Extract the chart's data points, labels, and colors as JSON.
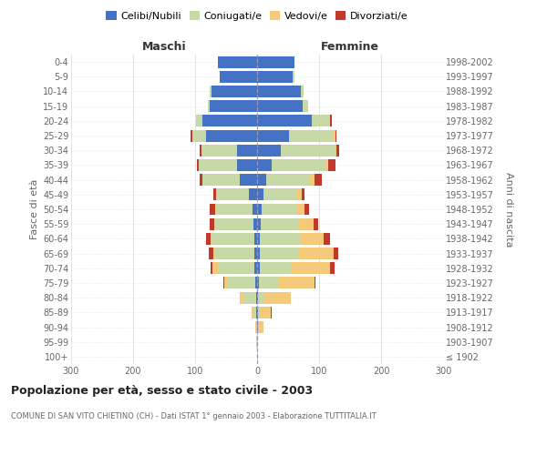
{
  "age_groups": [
    "100+",
    "95-99",
    "90-94",
    "85-89",
    "80-84",
    "75-79",
    "70-74",
    "65-69",
    "60-64",
    "55-59",
    "50-54",
    "45-49",
    "40-44",
    "35-39",
    "30-34",
    "25-29",
    "20-24",
    "15-19",
    "10-14",
    "5-9",
    "0-4"
  ],
  "birth_years": [
    "≤ 1902",
    "1903-1907",
    "1908-1912",
    "1913-1917",
    "1918-1922",
    "1923-1927",
    "1928-1932",
    "1933-1937",
    "1938-1942",
    "1943-1947",
    "1948-1952",
    "1953-1957",
    "1958-1962",
    "1963-1967",
    "1968-1972",
    "1973-1977",
    "1978-1982",
    "1983-1987",
    "1988-1992",
    "1993-1997",
    "1998-2002"
  ],
  "males_celibi": [
    0,
    0,
    0,
    1,
    2,
    3,
    5,
    5,
    5,
    6,
    8,
    13,
    28,
    32,
    32,
    82,
    88,
    77,
    74,
    60,
    63
  ],
  "males_coniugati": [
    0,
    1,
    2,
    5,
    18,
    45,
    58,
    63,
    68,
    62,
    57,
    52,
    60,
    62,
    58,
    23,
    10,
    3,
    2,
    1,
    0
  ],
  "males_vedovi": [
    0,
    0,
    1,
    3,
    8,
    5,
    9,
    3,
    2,
    1,
    2,
    1,
    0,
    0,
    0,
    0,
    0,
    0,
    0,
    0,
    0
  ],
  "males_divorziati": [
    0,
    0,
    0,
    0,
    0,
    2,
    3,
    7,
    7,
    8,
    9,
    4,
    4,
    3,
    2,
    2,
    1,
    0,
    0,
    0,
    0
  ],
  "females_nubili": [
    0,
    0,
    1,
    1,
    2,
    3,
    4,
    5,
    5,
    6,
    7,
    11,
    14,
    24,
    38,
    52,
    88,
    73,
    70,
    58,
    60
  ],
  "females_coniugate": [
    0,
    0,
    2,
    4,
    10,
    32,
    52,
    62,
    65,
    62,
    57,
    52,
    72,
    87,
    87,
    72,
    28,
    9,
    5,
    2,
    0
  ],
  "females_vedove": [
    0,
    2,
    8,
    17,
    42,
    57,
    62,
    57,
    38,
    23,
    13,
    9,
    7,
    4,
    3,
    2,
    2,
    0,
    0,
    0,
    0
  ],
  "females_divorziate": [
    0,
    0,
    0,
    2,
    1,
    2,
    7,
    7,
    9,
    7,
    7,
    4,
    11,
    11,
    4,
    2,
    2,
    0,
    0,
    0,
    0
  ],
  "color_celibi": "#4472c4",
  "color_coniugati": "#c8d9a8",
  "color_vedovi": "#f5c97a",
  "color_divorziati": "#c0392b",
  "xlim": 300,
  "title": "Popolazione per età, sesso e stato civile - 2003",
  "subtitle": "COMUNE DI SAN VITO CHIETINO (CH) - Dati ISTAT 1° gennaio 2003 - Elaborazione TUTTITALIA.IT",
  "ylabel_left": "Fasce di età",
  "ylabel_right": "Anni di nascita",
  "label_maschi": "Maschi",
  "label_femmine": "Femmine",
  "legend_labels": [
    "Celibi/Nubili",
    "Coniugati/e",
    "Vedovi/e",
    "Divorziati/e"
  ],
  "bg_color": "#ffffff",
  "grid_color": "#dddddd",
  "text_color": "#666666",
  "title_color": "#222222"
}
